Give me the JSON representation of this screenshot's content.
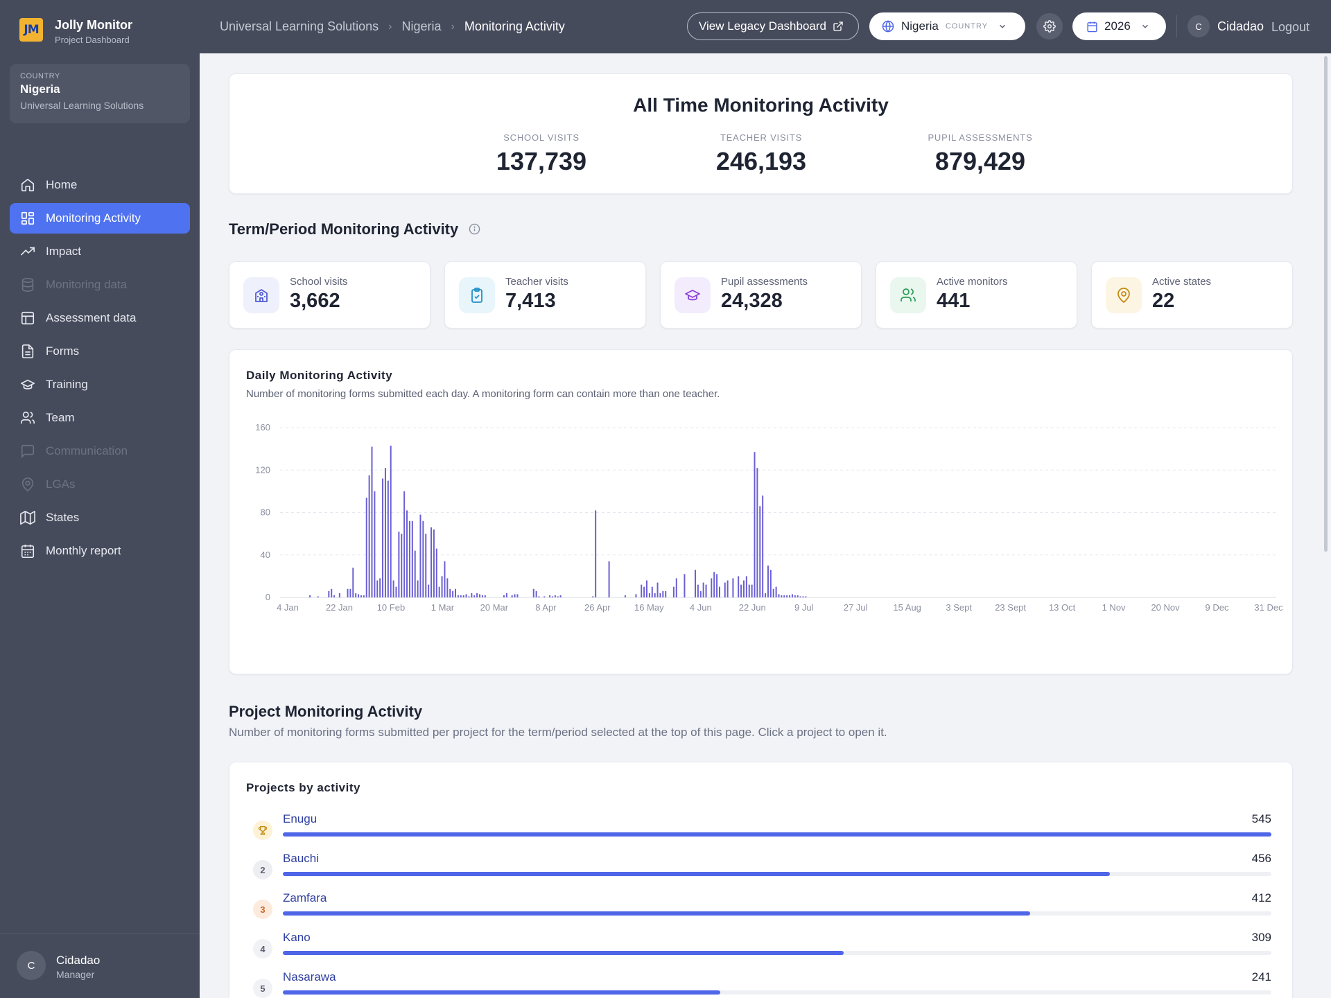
{
  "app": {
    "name": "Jolly Monitor",
    "subtitle": "Project Dashboard",
    "logo_text": "JM"
  },
  "breadcrumb": [
    "Universal Learning Solutions",
    "Nigeria",
    "Monitoring Activity"
  ],
  "header": {
    "legacy_button": "View Legacy Dashboard",
    "country": "Nigeria",
    "country_tag": "COUNTRY",
    "year": "2026",
    "user_initial": "C",
    "user_name": "Cidadao",
    "logout": "Logout"
  },
  "sidebar": {
    "country_card": {
      "label": "COUNTRY",
      "name": "Nigeria",
      "org": "Universal Learning Solutions"
    },
    "items": [
      {
        "label": "Home",
        "icon": "home-icon",
        "state": "normal"
      },
      {
        "label": "Monitoring Activity",
        "icon": "grid-icon",
        "state": "active"
      },
      {
        "label": "Impact",
        "icon": "trend-icon",
        "state": "normal"
      },
      {
        "label": "Monitoring data",
        "icon": "database-icon",
        "state": "disabled"
      },
      {
        "label": "Assessment data",
        "icon": "table-icon",
        "state": "normal"
      },
      {
        "label": "Forms",
        "icon": "document-icon",
        "state": "normal"
      },
      {
        "label": "Training",
        "icon": "graduation-cap-icon",
        "state": "normal"
      },
      {
        "label": "Team",
        "icon": "users-icon",
        "state": "normal"
      },
      {
        "label": "Communication",
        "icon": "chat-icon",
        "state": "disabled"
      },
      {
        "label": "LGAs",
        "icon": "map-pin-icon",
        "state": "disabled"
      },
      {
        "label": "States",
        "icon": "map-icon",
        "state": "normal"
      },
      {
        "label": "Monthly report",
        "icon": "calendar-icon",
        "state": "normal"
      }
    ],
    "footer": {
      "initial": "C",
      "name": "Cidadao",
      "role": "Manager"
    }
  },
  "all_time": {
    "title": "All Time Monitoring Activity",
    "stats": [
      {
        "label": "SCHOOL VISITS",
        "value": "137,739"
      },
      {
        "label": "TEACHER VISITS",
        "value": "246,193"
      },
      {
        "label": "PUPIL ASSESSMENTS",
        "value": "879,429"
      }
    ]
  },
  "term": {
    "title": "Term/Period Monitoring Activity",
    "kpis": [
      {
        "label": "School visits",
        "value": "3,662",
        "icon": "school-icon",
        "color": "#4f5bd5",
        "bg": "#eef0fb"
      },
      {
        "label": "Teacher visits",
        "value": "7,413",
        "icon": "clipboard-check-icon",
        "color": "#1f8fc7",
        "bg": "#e8f5fb"
      },
      {
        "label": "Pupil assessments",
        "value": "24,328",
        "icon": "graduation-cap-icon",
        "color": "#8a3fd6",
        "bg": "#f3ecfc"
      },
      {
        "label": "Active monitors",
        "value": "441",
        "icon": "users-icon",
        "color": "#2f9e5a",
        "bg": "#e9f7ef"
      },
      {
        "label": "Active states",
        "value": "22",
        "icon": "map-pin-icon",
        "color": "#c48a12",
        "bg": "#fdf5e3"
      }
    ]
  },
  "chart_data": {
    "type": "bar",
    "title": "Daily Monitoring Activity",
    "subtitle": "Number of monitoring forms submitted each day. A monitoring form can contain more than one teacher.",
    "x_tick_labels": [
      "4 Jan",
      "22 Jan",
      "10 Feb",
      "1 Mar",
      "20 Mar",
      "8 Apr",
      "26 Apr",
      "16 May",
      "4 Jun",
      "22 Jun",
      "9 Jul",
      "27 Jul",
      "15 Aug",
      "3 Sept",
      "23 Sept",
      "13 Oct",
      "1 Nov",
      "20 Nov",
      "9 Dec",
      "31 Dec"
    ],
    "y_ticks": [
      0,
      40,
      80,
      120,
      160
    ],
    "ylim": [
      0,
      160
    ],
    "xlim": [
      "2026-01-01",
      "2026-12-31"
    ],
    "grid": true,
    "bar_color": "#6a5fd3",
    "series": [
      {
        "x": [
          "2026-01-09",
          "2026-01-12",
          "2026-01-16",
          "2026-01-17",
          "2026-01-18",
          "2026-01-20",
          "2026-01-23",
          "2026-01-24",
          "2026-01-25",
          "2026-01-26",
          "2026-01-27",
          "2026-01-28",
          "2026-01-29",
          "2026-01-30",
          "2026-01-31",
          "2026-02-01",
          "2026-02-02",
          "2026-02-03",
          "2026-02-04",
          "2026-02-05",
          "2026-02-06",
          "2026-02-07",
          "2026-02-08",
          "2026-02-09",
          "2026-02-10",
          "2026-02-11",
          "2026-02-12",
          "2026-02-13",
          "2026-02-14",
          "2026-02-15",
          "2026-02-16",
          "2026-02-17",
          "2026-02-18",
          "2026-02-19",
          "2026-02-20",
          "2026-02-21",
          "2026-02-22",
          "2026-02-23",
          "2026-02-24",
          "2026-02-25",
          "2026-02-26",
          "2026-02-27",
          "2026-02-28",
          "2026-03-01",
          "2026-03-02",
          "2026-03-03",
          "2026-03-04",
          "2026-03-05",
          "2026-03-06",
          "2026-03-07",
          "2026-03-08",
          "2026-03-09",
          "2026-03-10",
          "2026-03-11",
          "2026-03-12",
          "2026-03-13",
          "2026-03-14",
          "2026-03-15",
          "2026-03-22",
          "2026-03-23",
          "2026-03-25",
          "2026-03-26",
          "2026-03-27",
          "2026-04-02",
          "2026-04-03",
          "2026-04-04",
          "2026-04-06",
          "2026-04-08",
          "2026-04-09",
          "2026-04-10",
          "2026-04-11",
          "2026-04-12",
          "2026-04-24",
          "2026-04-25",
          "2026-04-30",
          "2026-05-06",
          "2026-05-10",
          "2026-05-12",
          "2026-05-13",
          "2026-05-14",
          "2026-05-15",
          "2026-05-16",
          "2026-05-17",
          "2026-05-18",
          "2026-05-19",
          "2026-05-20",
          "2026-05-21",
          "2026-05-24",
          "2026-05-25",
          "2026-05-28",
          "2026-06-01",
          "2026-06-02",
          "2026-06-03",
          "2026-06-04",
          "2026-06-05",
          "2026-06-07",
          "2026-06-08",
          "2026-06-09",
          "2026-06-10",
          "2026-06-12",
          "2026-06-13",
          "2026-06-15",
          "2026-06-17",
          "2026-06-18",
          "2026-06-19",
          "2026-06-20",
          "2026-06-21",
          "2026-06-22",
          "2026-06-23",
          "2026-06-24",
          "2026-06-25",
          "2026-06-26",
          "2026-06-27",
          "2026-06-28",
          "2026-06-29",
          "2026-06-30",
          "2026-07-01",
          "2026-07-02",
          "2026-07-03",
          "2026-07-04",
          "2026-07-05",
          "2026-07-06",
          "2026-07-07",
          "2026-07-08",
          "2026-07-09",
          "2026-07-10",
          "2026-07-11",
          "2026-07-12"
        ],
        "values": [
          2,
          1,
          6,
          8,
          2,
          4,
          8,
          8,
          28,
          4,
          3,
          2,
          2,
          94,
          115,
          142,
          100,
          16,
          18,
          112,
          122,
          110,
          143,
          16,
          10,
          62,
          60,
          100,
          82,
          72,
          72,
          44,
          16,
          78,
          72,
          60,
          12,
          66,
          64,
          46,
          10,
          20,
          34,
          18,
          8,
          6,
          8,
          2,
          2,
          2,
          3,
          1,
          4,
          2,
          4,
          3,
          2,
          2,
          2,
          4,
          2,
          3,
          3,
          8,
          6,
          1,
          1,
          2,
          1,
          2,
          1,
          2,
          1,
          82,
          34,
          2,
          3,
          12,
          10,
          16,
          4,
          10,
          4,
          14,
          4,
          6,
          6,
          10,
          18,
          22,
          26,
          12,
          6,
          14,
          12,
          18,
          24,
          22,
          10,
          14,
          16,
          18,
          20,
          12,
          16,
          20,
          12,
          12,
          137,
          122,
          86,
          96,
          4,
          30,
          26,
          8,
          10,
          3,
          2,
          2,
          2,
          2,
          3,
          2,
          2,
          1,
          1,
          1
        ]
      }
    ]
  },
  "projects": {
    "title": "Project Monitoring Activity",
    "description": "Number of monitoring forms submitted per project for the term/period selected at the top of this page. Click a project to open it.",
    "card_title": "Projects by activity",
    "max": 545,
    "rows": [
      {
        "rank": "1",
        "rank_icon": "trophy-icon",
        "name": "Enugu",
        "value": 545,
        "rank_color": "#c48a12",
        "rank_bg": "#fdf1d6"
      },
      {
        "rank": "2",
        "name": "Bauchi",
        "value": 456,
        "rank_color": "#5c6173",
        "rank_bg": "#eceef2"
      },
      {
        "rank": "3",
        "name": "Zamfara",
        "value": 412,
        "rank_color": "#c86a2a",
        "rank_bg": "#fcebdd"
      },
      {
        "rank": "4",
        "name": "Kano",
        "value": 309,
        "rank_color": "#5c6173",
        "rank_bg": "#f1f2f5"
      },
      {
        "rank": "5",
        "name": "Nasarawa",
        "value": 241,
        "rank_color": "#5c6173",
        "rank_bg": "#f1f2f5"
      }
    ]
  }
}
